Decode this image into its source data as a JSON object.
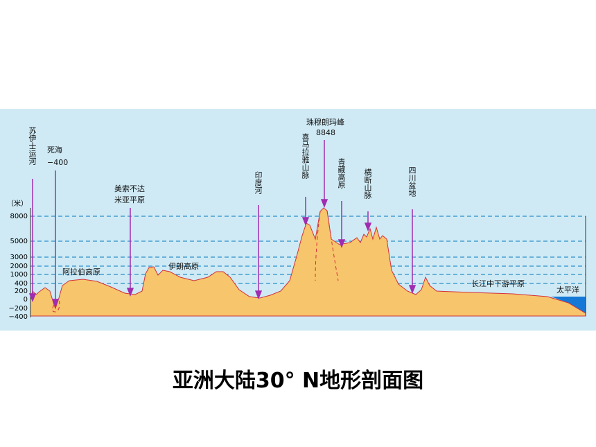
{
  "axis": {
    "unit": "（米）",
    "ticks": [
      "8000",
      "5000",
      "3000",
      "2000",
      "1000",
      "400",
      "200",
      "0",
      "−200",
      "−400"
    ]
  },
  "places": {
    "suez": "苏伊士运河",
    "deadsea": "死海",
    "deadsea_depth": "−400",
    "mesopotamia_1": "美索不达",
    "mesopotamia_2": "米亚平原",
    "arabia": "阿拉伯高原",
    "iran": "伊朗高原",
    "indus": "印度河",
    "himalaya": "喜马拉雅山脉",
    "everest": "珠穆朗玛峰",
    "everest_height": "8848",
    "tibet": "青藏高原",
    "hengduan": "横断山脉",
    "sichuan": "四川盆地",
    "yangtze": "长江中下游平原",
    "pacific": "太平洋"
  },
  "title": "亚洲大陆30° N地形剖面图"
}
